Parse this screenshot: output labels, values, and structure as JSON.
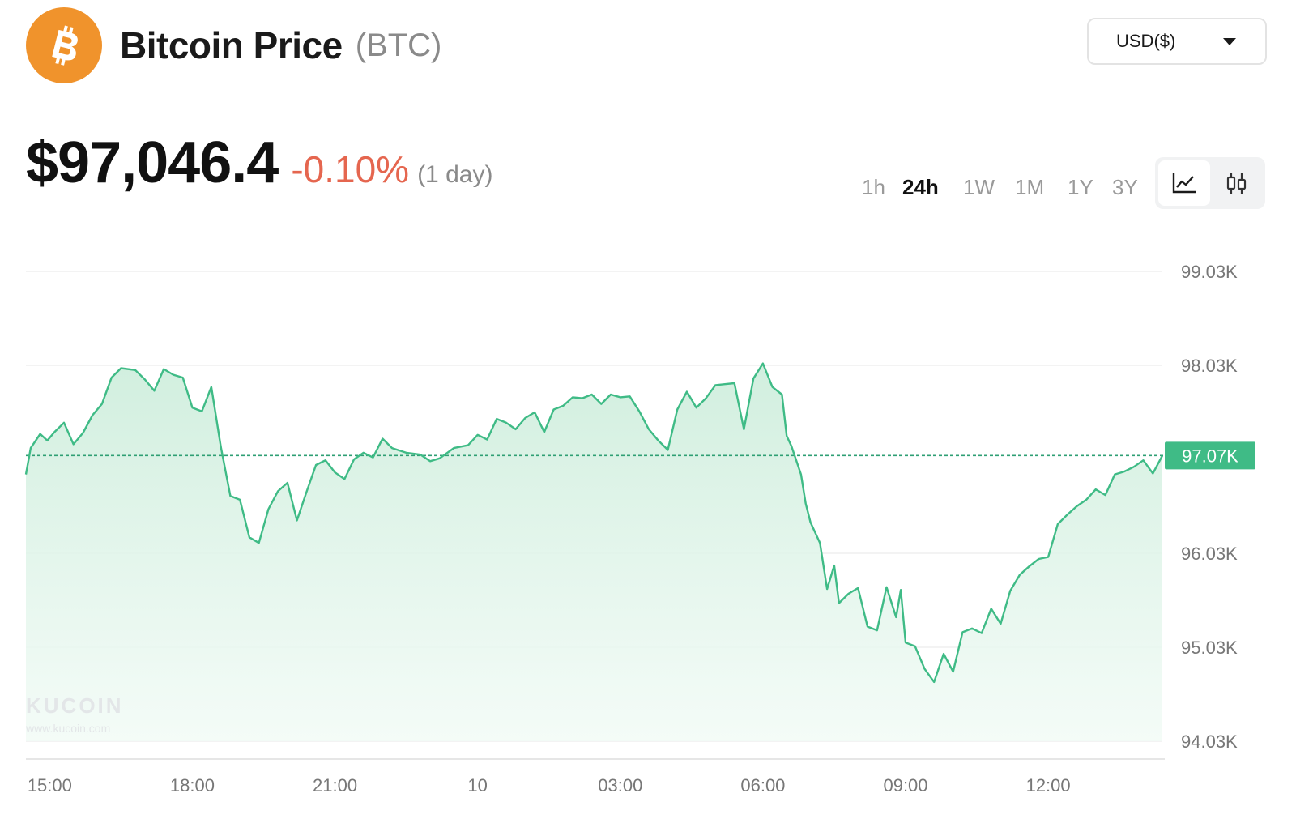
{
  "header": {
    "title": "Bitcoin Price",
    "ticker": "(BTC)",
    "logo_icon": "bitcoin-icon",
    "logo_color": "#f0932c"
  },
  "currency_select": {
    "value": "USD($)"
  },
  "price": {
    "value": "$97,046.4",
    "change": "-0.10%",
    "period": "(1 day)",
    "change_color": "#e5664f"
  },
  "time_ranges": [
    {
      "label": "1h",
      "active": false
    },
    {
      "label": "24h",
      "active": true
    },
    {
      "label": "1W",
      "active": false
    },
    {
      "label": "1M",
      "active": false
    },
    {
      "label": "1Y",
      "active": false
    },
    {
      "label": "3Y",
      "active": false
    }
  ],
  "chart_view_toggle": {
    "options": [
      "line-chart-icon",
      "candlestick-chart-icon"
    ],
    "active": "line-chart-icon"
  },
  "chart_data": {
    "type": "area",
    "title": "",
    "xlabel": "",
    "ylabel": "",
    "x_tick_labels": [
      "15:00",
      "18:00",
      "21:00",
      "10",
      "03:00",
      "06:00",
      "09:00",
      "12:00"
    ],
    "x_tick_hours": [
      1,
      4,
      7,
      10,
      13,
      16,
      19,
      22
    ],
    "xlim_hours": [
      0.5,
      24.4
    ],
    "y_tick_labels": [
      "99.03K",
      "98.03K",
      "96.03K",
      "95.03K",
      "94.03K"
    ],
    "y_tick_values": [
      99030,
      98030,
      96030,
      95030,
      94030
    ],
    "ylim": [
      94030,
      99030
    ],
    "current_value": 97070,
    "current_label": "97.07K",
    "line_color": "#3fbb86",
    "fill_color": "#e0f6e9",
    "grid": true,
    "watermark": "KUCOIN",
    "watermark_sub": "www.kucoin.com",
    "series": [
      {
        "x": [
          0.5,
          0.6,
          0.8,
          0.95,
          1.1,
          1.3,
          1.5,
          1.7,
          1.9,
          2.1,
          2.3,
          2.5,
          2.8,
          3.0,
          3.2,
          3.4,
          3.6,
          3.8,
          4.0,
          4.2,
          4.4,
          4.6,
          4.8,
          5.0,
          5.2,
          5.4,
          5.6,
          5.8,
          6.0,
          6.2,
          6.4,
          6.6,
          6.8,
          7.0,
          7.2,
          7.4,
          7.6,
          7.8,
          8.0,
          8.2,
          8.5,
          8.8,
          9.0,
          9.2,
          9.5,
          9.8,
          10.0,
          10.2,
          10.4,
          10.6,
          10.8,
          11.0,
          11.2,
          11.4,
          11.6,
          11.8,
          12.0,
          12.2,
          12.4,
          12.6,
          12.8,
          13.0,
          13.2,
          13.4,
          13.6,
          13.8,
          14.0,
          14.2,
          14.4,
          14.6,
          14.8,
          15.0,
          15.2,
          15.4,
          15.6,
          15.8,
          16.0,
          16.2,
          16.4,
          16.5,
          16.6,
          16.8,
          16.9,
          17.0,
          17.2,
          17.35,
          17.5,
          17.6,
          17.8,
          18.0,
          18.2,
          18.4,
          18.6,
          18.8,
          18.9,
          19.0,
          19.2,
          19.4,
          19.6,
          19.8,
          20.0,
          20.2,
          20.4,
          20.6,
          20.8,
          21.0,
          21.2,
          21.4,
          21.6,
          21.8,
          22.0,
          22.2,
          22.4,
          22.6,
          22.8,
          23.0,
          23.2,
          23.4,
          23.6,
          23.8,
          24.0,
          24.2,
          24.4
        ],
        "values": [
          96870,
          97150,
          97300,
          97230,
          97320,
          97420,
          97190,
          97310,
          97500,
          97620,
          97900,
          98000,
          97980,
          97880,
          97760,
          97990,
          97930,
          97900,
          97580,
          97540,
          97800,
          97160,
          96640,
          96600,
          96200,
          96140,
          96500,
          96690,
          96780,
          96380,
          96680,
          96970,
          97020,
          96890,
          96820,
          97030,
          97100,
          97050,
          97250,
          97150,
          97100,
          97080,
          97010,
          97040,
          97150,
          97180,
          97290,
          97240,
          97460,
          97420,
          97350,
          97470,
          97530,
          97320,
          97560,
          97600,
          97690,
          97680,
          97720,
          97620,
          97720,
          97690,
          97700,
          97540,
          97350,
          97230,
          97130,
          97560,
          97750,
          97580,
          97680,
          97820,
          97830,
          97840,
          97350,
          97890,
          98050,
          97800,
          97720,
          97280,
          97170,
          96870,
          96560,
          96360,
          96140,
          95650,
          95900,
          95500,
          95600,
          95660,
          95250,
          95210,
          95670,
          95350,
          95640,
          95080,
          95040,
          94800,
          94660,
          94960,
          94770,
          95190,
          95230,
          95180,
          95440,
          95280,
          95630,
          95800,
          95890,
          95970,
          95990,
          96340,
          96440,
          96530,
          96600,
          96710,
          96650,
          96870,
          96900,
          96950,
          97020,
          96880,
          97070
        ]
      }
    ]
  }
}
